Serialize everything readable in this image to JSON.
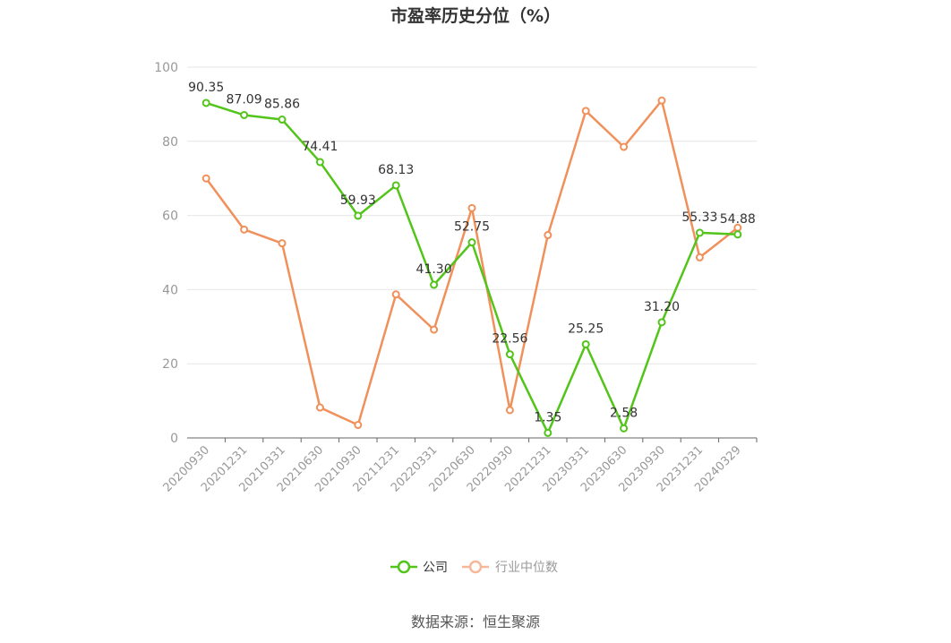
{
  "chart_data": {
    "type": "line",
    "title": "市盈率历史分位（%）",
    "categories": [
      "20200930",
      "20201231",
      "20210331",
      "20210630",
      "20210930",
      "20211231",
      "20220331",
      "20220630",
      "20220930",
      "20221231",
      "20230331",
      "20230630",
      "20230930",
      "20231231",
      "20240329"
    ],
    "series": [
      {
        "name": "公司",
        "color": "#52c41a",
        "show_labels": true,
        "values": [
          90.35,
          87.09,
          85.86,
          74.41,
          59.93,
          68.13,
          41.3,
          52.75,
          22.56,
          1.35,
          25.25,
          2.58,
          31.2,
          55.33,
          54.88
        ],
        "labels": [
          "90.35",
          "87.09",
          "85.86",
          "74.41",
          "59.93",
          "68.13",
          "41.30",
          "52.75",
          "22.56",
          "1.35",
          "25.25",
          "2.58",
          "31.20",
          "55.33",
          "54.88"
        ]
      },
      {
        "name": "行业中位数",
        "color": "#f0905a",
        "show_labels": false,
        "values": [
          70,
          56.2,
          52.5,
          8.2,
          3.5,
          38.7,
          29.2,
          62.0,
          7.5,
          54.7,
          88.2,
          78.5,
          91.0,
          48.7,
          56.7
        ]
      }
    ],
    "ylim": [
      0,
      100
    ],
    "yticks": [
      0,
      20,
      40,
      60,
      80,
      100
    ],
    "grid": true,
    "legend": "bottom-center"
  },
  "legend": {
    "company": "公司",
    "industry": "行业中位数"
  },
  "source": "数据来源：恒生聚源"
}
